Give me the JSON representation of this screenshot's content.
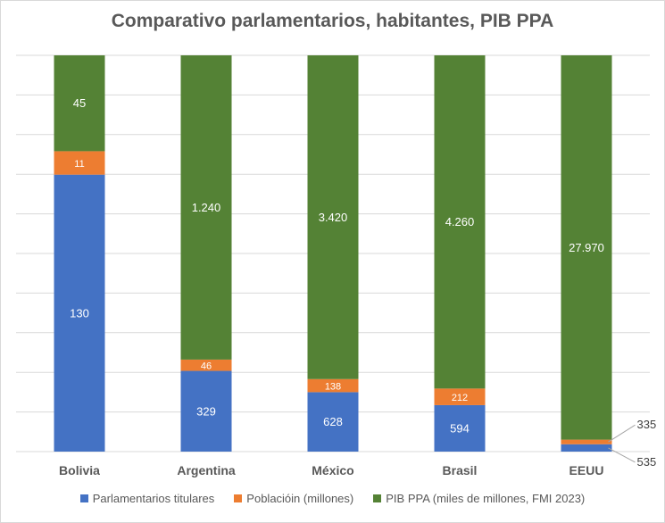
{
  "colors": {
    "parlamentarios": "#4472c4",
    "poblacion": "#ed7d31",
    "pib": "#548235",
    "grid": "#d9d9d9",
    "text": "#595959"
  },
  "chart_data": {
    "type": "bar",
    "stacked": "100%",
    "title": "Comparativo parlamentarios, habitantes, PIB PPA",
    "categories": [
      "Bolivia",
      "Argentina",
      "México",
      "Brasil",
      "EEUU"
    ],
    "series": [
      {
        "name": "Parlamentarios titulares",
        "values": [
          130,
          329,
          628,
          594,
          535
        ],
        "labels": [
          "130",
          "329",
          "628",
          "594",
          "535"
        ]
      },
      {
        "name": "Poblacióin (millones)",
        "values": [
          11,
          46,
          138,
          212,
          335
        ],
        "labels": [
          "11",
          "46",
          "138",
          "212",
          "335"
        ]
      },
      {
        "name": "PIB PPA (miles de millones, FMI 2023)",
        "values": [
          45,
          1240,
          3420,
          4260,
          27970
        ],
        "labels": [
          "45",
          "1.240",
          "3.420",
          "4.260",
          "27.970"
        ]
      }
    ],
    "grid": true,
    "legend": "bottom"
  }
}
